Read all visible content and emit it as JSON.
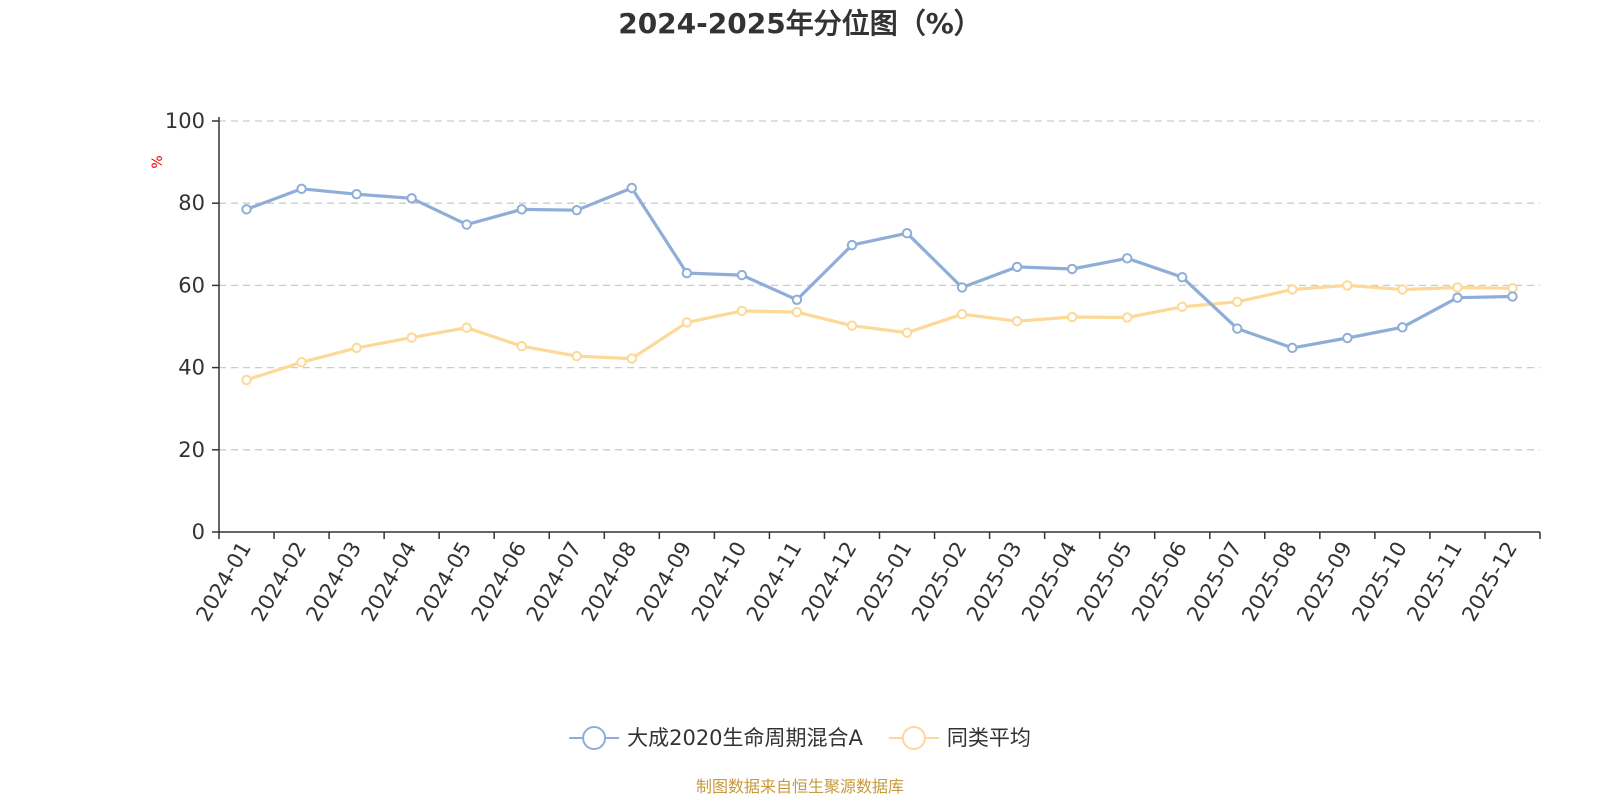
{
  "chart_data": {
    "type": "line",
    "title": "2024-2025年分位图（%）",
    "ylabel": "%",
    "xlabel": "",
    "ylim": [
      0,
      100
    ],
    "yticks": [
      0,
      20,
      40,
      60,
      80,
      100
    ],
    "grid": true,
    "legend_position": "bottom-center",
    "categories": [
      "2024-01",
      "2024-02",
      "2024-03",
      "2024-04",
      "2024-05",
      "2024-06",
      "2024-07",
      "2024-08",
      "2024-09",
      "2024-10",
      "2024-11",
      "2024-12",
      "2025-01",
      "2025-02",
      "2025-03",
      "2025-04",
      "2025-05",
      "2025-06",
      "2025-07",
      "2025-08",
      "2025-09",
      "2025-10",
      "2025-11",
      "2025-12"
    ],
    "series": [
      {
        "name": "大成2020生命周期混合A",
        "color": "#8eaed8",
        "values": [
          78.5,
          83.5,
          82.2,
          81.2,
          74.8,
          78.5,
          78.3,
          83.7,
          63.0,
          62.5,
          56.5,
          69.8,
          72.7,
          59.5,
          64.5,
          64.0,
          66.6,
          62.0,
          49.5,
          44.8,
          47.2,
          49.8,
          57.0,
          57.3
        ]
      },
      {
        "name": "同类平均",
        "color": "#fcd997",
        "values": [
          37.0,
          41.3,
          44.8,
          47.3,
          49.7,
          45.2,
          42.8,
          42.2,
          51.0,
          53.8,
          53.5,
          50.2,
          48.5,
          53.0,
          51.3,
          52.3,
          52.2,
          54.8,
          56.0,
          59.0,
          60.0,
          59.0,
          59.5,
          59.3
        ]
      }
    ]
  },
  "unit_color": "#ee0000",
  "source": {
    "text": "制图数据来自恒生聚源数据库",
    "color": "#c79a3e"
  }
}
